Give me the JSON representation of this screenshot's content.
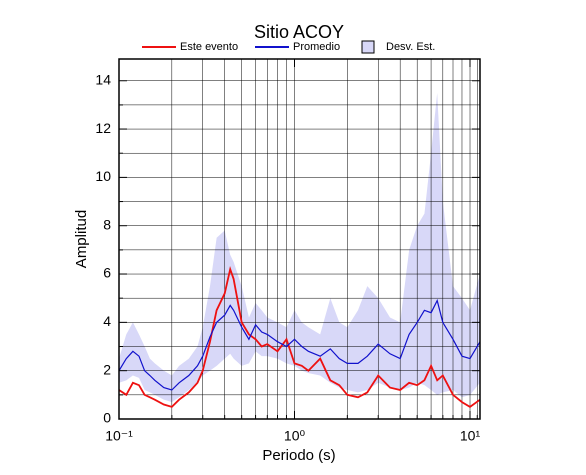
{
  "chart_data": {
    "type": "line",
    "title": "Sitio ACOY",
    "x_label": "Periodo (s)",
    "y_label": "Amplitud",
    "log_x": true,
    "grid": true,
    "xlim": [
      0.1,
      11.4
    ],
    "ylim": [
      0,
      14.9
    ],
    "xticks": [
      {
        "value": 0.1,
        "label": "10⁻¹"
      },
      {
        "value": 1,
        "label": "10⁰"
      },
      {
        "value": 10,
        "label": "10¹"
      }
    ],
    "xminor": [
      0.2,
      0.3,
      0.4,
      0.5,
      0.6,
      0.7,
      0.8,
      0.9,
      2,
      3,
      4,
      5,
      6,
      7,
      8,
      9,
      11
    ],
    "yticks": [
      0,
      2,
      4,
      6,
      8,
      10,
      12,
      14
    ],
    "yminor": [
      1,
      3,
      5,
      7,
      9,
      11,
      13
    ],
    "x": [
      0.1,
      0.11,
      0.12,
      0.13,
      0.14,
      0.15,
      0.16,
      0.18,
      0.2,
      0.22,
      0.25,
      0.28,
      0.3,
      0.33,
      0.36,
      0.4,
      0.43,
      0.45,
      0.5,
      0.55,
      0.6,
      0.65,
      0.7,
      0.8,
      0.9,
      1.0,
      1.1,
      1.2,
      1.4,
      1.6,
      1.8,
      2.0,
      2.3,
      2.6,
      3.0,
      3.5,
      4.0,
      4.5,
      5.0,
      5.5,
      6.0,
      6.5,
      7.0,
      8.0,
      9.0,
      10,
      11.4
    ],
    "series": [
      {
        "name": "Este evento",
        "color": "#ee1111",
        "values": [
          1.2,
          1.0,
          1.5,
          1.4,
          1.0,
          0.9,
          0.8,
          0.6,
          0.5,
          0.8,
          1.1,
          1.5,
          2.0,
          3.2,
          4.5,
          5.2,
          6.2,
          5.8,
          4.0,
          3.5,
          3.3,
          3.0,
          3.1,
          2.8,
          3.3,
          2.3,
          2.2,
          2.0,
          2.5,
          1.6,
          1.4,
          1.0,
          0.9,
          1.1,
          1.8,
          1.3,
          1.2,
          1.5,
          1.4,
          1.6,
          2.2,
          1.6,
          1.8,
          1.0,
          0.7,
          0.5,
          0.8
        ]
      },
      {
        "name": "Promedio",
        "color": "#1111cc",
        "values": [
          2.0,
          2.5,
          2.8,
          2.6,
          2.0,
          1.8,
          1.6,
          1.3,
          1.2,
          1.5,
          1.8,
          2.2,
          2.6,
          3.4,
          4.0,
          4.3,
          4.7,
          4.5,
          3.8,
          3.3,
          3.9,
          3.6,
          3.5,
          3.2,
          3.0,
          3.3,
          3.0,
          2.8,
          2.6,
          2.9,
          2.5,
          2.3,
          2.3,
          2.6,
          3.1,
          2.7,
          2.5,
          3.5,
          4.0,
          4.5,
          4.4,
          4.9,
          4.0,
          3.3,
          2.6,
          2.5,
          3.2
        ]
      },
      {
        "name": "Desv. Est.",
        "color": "#d8d8f8",
        "upper": [
          2.5,
          3.5,
          4.0,
          3.5,
          3.0,
          2.5,
          2.3,
          2.0,
          1.8,
          2.2,
          2.5,
          3.0,
          3.8,
          5.5,
          7.5,
          7.8,
          6.8,
          6.5,
          5.5,
          4.2,
          4.8,
          4.5,
          4.2,
          4.0,
          3.8,
          4.5,
          4.0,
          3.8,
          3.5,
          5.0,
          4.0,
          3.8,
          4.5,
          5.5,
          5.0,
          4.2,
          4.0,
          7.0,
          8.0,
          8.5,
          11.0,
          13.5,
          9.0,
          5.5,
          5.0,
          4.5,
          6.0
        ],
        "lower": [
          1.5,
          1.6,
          1.8,
          1.7,
          1.2,
          1.1,
          1.0,
          0.8,
          0.7,
          0.9,
          1.2,
          1.5,
          1.8,
          2.0,
          2.2,
          2.5,
          2.7,
          2.5,
          2.2,
          2.3,
          2.8,
          2.6,
          2.6,
          2.5,
          2.3,
          2.2,
          2.0,
          1.9,
          1.8,
          1.5,
          1.3,
          1.2,
          1.1,
          1.2,
          1.5,
          1.3,
          1.2,
          1.3,
          1.5,
          1.4,
          1.2,
          1.0,
          1.1,
          1.2,
          0.9,
          1.0,
          1.5
        ]
      }
    ]
  }
}
